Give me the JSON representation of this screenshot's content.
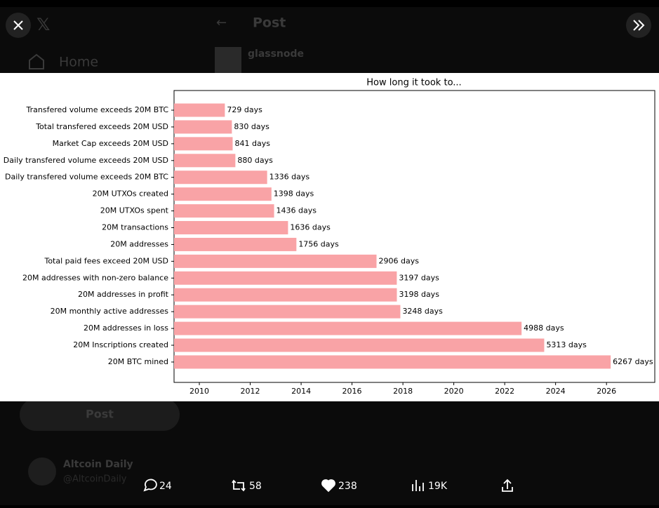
{
  "ui": {
    "header_title": "Post",
    "nav_home": "Home",
    "author": "glassnode",
    "post_button": "Post",
    "suggest_name": "Altcoin Daily",
    "suggest_handle": "@AltcoinDaily",
    "stats": {
      "replies": "24",
      "reposts": "58",
      "likes": "238",
      "views": "19K"
    }
  },
  "chart_data": {
    "type": "barh",
    "title": "How long it took to...",
    "categories": [
      "Transfered volume exceeds 20M BTC",
      "Total transfered exceeds 20M USD",
      "Market Cap exceeds 20M USD",
      "Daily transfered volume exceeds 20M USD",
      "Daily transfered volume exceeds 20M BTC",
      "20M UTXOs created",
      "20M UTXOs spent",
      "20M transactions",
      "20M addresses",
      "Total paid fees exceed 20M USD",
      "20M addresses with non-zero balance",
      "20M addresses in profit",
      "20M monthly active addresses",
      "20M addresses in loss",
      "20M Inscriptions created",
      "20M BTC mined"
    ],
    "values": [
      729,
      830,
      841,
      880,
      1336,
      1398,
      1436,
      1636,
      1756,
      2906,
      3197,
      3198,
      3248,
      4988,
      5313,
      6267
    ],
    "value_labels": [
      "729 days",
      "830 days",
      "841 days",
      "880 days",
      "1336 days",
      "1398 days",
      "1436 days",
      "1636 days",
      "1756 days",
      "2906 days",
      "3197 days",
      "3198 days",
      "3248 days",
      "4988 days",
      "5313 days",
      "6267 days"
    ],
    "color": "#f9a3a6",
    "xlim": [
      0,
      6900
    ],
    "xticks": [
      {
        "value": 363,
        "label": "2010"
      },
      {
        "value": 1093,
        "label": "2012"
      },
      {
        "value": 1824,
        "label": "2014"
      },
      {
        "value": 2554,
        "label": "2016"
      },
      {
        "value": 3285,
        "label": "2018"
      },
      {
        "value": 4015,
        "label": "2020"
      },
      {
        "value": 4746,
        "label": "2022"
      },
      {
        "value": 5476,
        "label": "2024"
      },
      {
        "value": 6207,
        "label": "2026"
      }
    ],
    "grid": false
  }
}
